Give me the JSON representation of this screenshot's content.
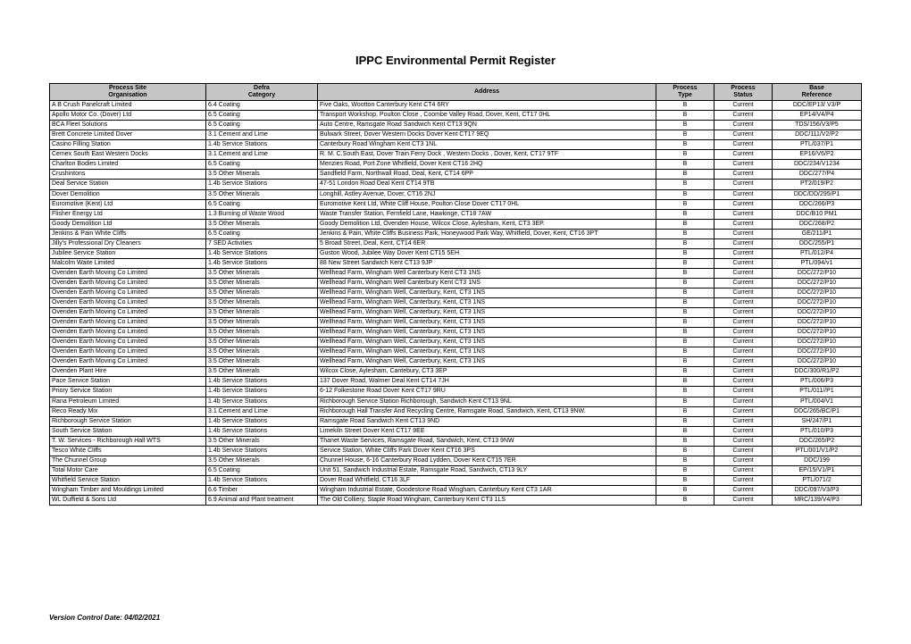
{
  "title": "IPPC Environmental Permit Register",
  "version_label": "Version Control Date: 04/02/2021",
  "columns": [
    {
      "key": "org",
      "label_line1": "Process Site",
      "label_line2": "Organisation",
      "class": "c-proc-site"
    },
    {
      "key": "category",
      "label_line1": "Defra",
      "label_line2": "Category",
      "class": "c-category"
    },
    {
      "key": "address",
      "label_line1": "Address",
      "label_line2": "",
      "class": "c-address"
    },
    {
      "key": "ptype",
      "label_line1": "Process",
      "label_line2": "Type",
      "class": "c-ptype"
    },
    {
      "key": "status",
      "label_line1": "Process",
      "label_line2": "Status",
      "class": "c-status"
    },
    {
      "key": "ref",
      "label_line1": "Base",
      "label_line2": "Reference",
      "class": "c-ref"
    }
  ],
  "rows": [
    {
      "org": "A B Crush Panelcraft Limited",
      "category": "6.4 Coating",
      "address": "Five Oaks, Wootton Canterbury Kent CT4 6RY",
      "ptype": "B",
      "status": "Current",
      "ref": "DDC/EP13/ V3/P"
    },
    {
      "org": "Apollo Motor Co. (Dover) Ltd",
      "category": "6.5 Coating",
      "address": "Transport Workshop, Poulton Close , Coombe Valley Road, Dover, Kent, CT17 0HL",
      "ptype": "B",
      "status": "Current",
      "ref": "EP14/V4/P4"
    },
    {
      "org": "BCA Fleet Solutions",
      "category": "6.5 Coating",
      "address": "Auto Centre, Ramsgate Road Sandwich Kent CT13 9QN",
      "ptype": "B",
      "status": "Current",
      "ref": "TDS/156/V3/P5"
    },
    {
      "org": "Brett Concrete Limited Dover",
      "category": "3.1 Cement and Lime",
      "address": "Bulwark Street, Dover Western Docks Dover Kent CT17 9EQ",
      "ptype": "B",
      "status": "Current",
      "ref": "DDC/111/V2/P2"
    },
    {
      "org": "Casino Filling Station",
      "category": "1.4b Service Stations",
      "address": "Canterbury Road Wingham Kent CT3 1NL",
      "ptype": "B",
      "status": "Current",
      "ref": "PTL/037/P1"
    },
    {
      "org": "Cemex South East Western Docks",
      "category": "3.1 Cement and Lime",
      "address": "R. M. C.South East, Dover Train Ferry Dock , Western Docks , Dover, Kent, CT17 9TF",
      "ptype": "B",
      "status": "Current",
      "ref": "EP16/V6/P2"
    },
    {
      "org": "Charlton Bodies Limited",
      "category": "6.5 Coating",
      "address": "Menzies Road, Port Zone Whitfield, Dover Kent CT16 2HQ",
      "ptype": "B",
      "status": "Current",
      "ref": "DDC/234/V1234"
    },
    {
      "org": "Crushintons",
      "category": "3.5 Other Minerals",
      "address": "Sandfield Farm, Northwall Road, Deal, Kent, CT14 6PP",
      "ptype": "B",
      "status": "Current",
      "ref": "DDC/277/P4"
    },
    {
      "org": "Deal Service Station",
      "category": "1.4b Service Stations",
      "address": "47-51 London Road Deal Kent CT14 9TB",
      "ptype": "B",
      "status": "Current",
      "ref": "PT2/019/P2"
    },
    {
      "org": "Dover Demolition",
      "category": "3.5 Other Minerals",
      "address": "Longhill, Astley Avenue, Dover, CT16 2NJ",
      "ptype": "B",
      "status": "Current",
      "ref": "DDC/DD/295/P1"
    },
    {
      "org": "Euromotive (Kent) Ltd",
      "category": "6.5 Coating",
      "address": "Euromotive Kent Ltd, White Cliff House, Poulton Close Dover CT17 0HL",
      "ptype": "B",
      "status": "Current",
      "ref": "DDC/266/P3"
    },
    {
      "org": "Flisher Energy Ltd",
      "category": "1.3 Burning of Waste Wood",
      "address": "Waste Transfer Station, Fernfield Lane, Hawkinge, CT18 7AW",
      "ptype": "B",
      "status": "Current",
      "ref": "DDC/B10 PM1"
    },
    {
      "org": "Goody Demolition Ltd",
      "category": "3.5 Other Minerals",
      "address": "Goody Demolition Ltd, Ovenden House, Wilcox Close, Aylesham, Kent, CT3 3EP.",
      "ptype": "B",
      "status": "Current",
      "ref": "DDC/268/P2"
    },
    {
      "org": "Jenkins & Pain White Cliffs",
      "category": "6.5 Coating",
      "address": "Jenkins & Pain, White Cliffs Business Park, Honeywood Park Way, Whitfield, Dover, Kent, CT16 3PT",
      "ptype": "B",
      "status": "Current",
      "ref": "GE/211/P1"
    },
    {
      "org": "Jilly's Professional Dry Cleaners",
      "category": "7 SED Activities",
      "address": "5 Broad Street, Deal, Kent, CT14 6ER",
      "ptype": "B",
      "status": "Current",
      "ref": "DDC/255/P1"
    },
    {
      "org": "Jubilee Service Station",
      "category": "1.4b Service Stations",
      "address": "Guston Wood, Jubilee Way Dover Kent CT15 5EH",
      "ptype": "B",
      "status": "Current",
      "ref": "PTL/012/P4"
    },
    {
      "org": "Malcolm Waite Limited",
      "category": "1.4b Service Stations",
      "address": "88 New Street Sandwich Kent CT13 9JP",
      "ptype": "B",
      "status": "Current",
      "ref": "PTL/094/v1"
    },
    {
      "org": "Ovenden Earth Moving Co Limited",
      "category": "3.5 Other Minerals",
      "address": "Wellhead Farm, Wingham Well Canterbury Kent CT3 1NS",
      "ptype": "B",
      "status": "Current",
      "ref": "DDC/272/P10"
    },
    {
      "org": "Ovenden Earth Moving Co Limited",
      "category": "3.5 Other Minerals",
      "address": "Wellhead Farm, Wingham Well Canterbury Kent CT3 1NS",
      "ptype": "B",
      "status": "Current",
      "ref": "DDC/272/P10"
    },
    {
      "org": "Ovenden Earth Moving Co Limited",
      "category": "3.5 Other Minerals",
      "address": "Wellhead Farm, Wingham Well, Canterbury, Kent, CT3 1NS",
      "ptype": "B",
      "status": "Current",
      "ref": "DDC/272/P10"
    },
    {
      "org": "Ovenden Earth Moving Co Limited",
      "category": "3.5 Other Minerals",
      "address": "Wellhead Farm, Wingham Well, Canterbury, Kent, CT3 1NS",
      "ptype": "B",
      "status": "Current",
      "ref": "DDC/272/P10"
    },
    {
      "org": "Ovenden Earth Moving Co Limited",
      "category": "3.5 Other Minerals",
      "address": "Wellhead Farm, Wingham Well, Canterbury, Kent, CT3 1NS",
      "ptype": "B",
      "status": "Current",
      "ref": "DDC/272/P10"
    },
    {
      "org": "Ovenden Earth Moving Co Limited",
      "category": "3.5 Other Minerals",
      "address": "Wellhead Farm, Wingham Well, Canterbury, Kent, CT3 1NS",
      "ptype": "B",
      "status": "Current",
      "ref": "DDC/272/P10"
    },
    {
      "org": "Ovenden Earth Moving Co Limited",
      "category": "3.5 Other Minerals",
      "address": "Wellhead Farm, Wingham Well, Canterbury, Kent, CT3 1NS",
      "ptype": "B",
      "status": "Current",
      "ref": "DDC/272/P10"
    },
    {
      "org": "Ovenden Earth Moving Co Limited",
      "category": "3.5 Other Minerals",
      "address": "Wellhead Farm, Wingham Well, Canterbury, Kent, CT3 1NS",
      "ptype": "B",
      "status": "Current",
      "ref": "DDC/272/P10"
    },
    {
      "org": "Ovenden Earth Moving Co Limited",
      "category": "3.5 Other Minerals",
      "address": "Wellhead Farm, Wingham Well, Canterbury, Kent, CT3 1NS",
      "ptype": "B",
      "status": "Current",
      "ref": "DDC/272/P10"
    },
    {
      "org": "Ovenden Earth Moving Co Limited",
      "category": "3.5 Other Minerals",
      "address": "Wellhead Farm, Wingham Well, Canterbury, Kent, CT3 1NS",
      "ptype": "B",
      "status": "Current",
      "ref": "DDC/272/P10"
    },
    {
      "org": "Ovenden Plant Hire",
      "category": "3.5 Other Minerals",
      "address": "Wilcox Close, Aylesham, Cantebury, CT3 3EP",
      "ptype": "B",
      "status": "Current",
      "ref": "DDC/300/R1/P2"
    },
    {
      "org": "Pace Service Station",
      "category": "1.4b Service Stations",
      "address": "137 Dover Road, Walmer Deal Kent CT14 7JH",
      "ptype": "B",
      "status": "Current",
      "ref": "PTL/006/P3"
    },
    {
      "org": "Priory Service Station",
      "category": "1.4b Service Stations",
      "address": "6-12 Folkestone Road Dover Kent CT17 9RU",
      "ptype": "B",
      "status": "Current",
      "ref": "PTL/011//P1"
    },
    {
      "org": "Rana Petroleum Limited",
      "category": "1.4b Service Stations",
      "address": "Richborough Service Station Richborough, Sandwich Kent CT13 9NL",
      "ptype": "B",
      "status": "Current",
      "ref": "PTL/004/V1"
    },
    {
      "org": "Reco Ready Mix",
      "category": "3.1 Cement and Lime",
      "address": "Richborough Hall Transfer And Recycling Centre, Ramsgate Road, Sandwich, Kent, CT13 9NW.",
      "ptype": "B",
      "status": "Current",
      "ref": "DDC/265/BC/P1"
    },
    {
      "org": "Richborough Service Station",
      "category": "1.4b Service Stations",
      "address": "Ramsgate Road Sandwich Kent CT13 9ND",
      "ptype": "B",
      "status": "Current",
      "ref": "SH/247/P1"
    },
    {
      "org": "South Service Station",
      "category": "1.4b Service Stations",
      "address": "Limekiln Street Dover Kent CT17 9EE",
      "ptype": "B",
      "status": "Current",
      "ref": "PTL/010/P3"
    },
    {
      "org": "T. W. Services - Richborough Hall WTS",
      "category": "3.5 Other Minerals",
      "address": "Thanet Waste Services, Ramsgate Road, Sandwich, Kent, CT13 9NW",
      "ptype": "B",
      "status": "Current",
      "ref": "DDC/265/P2"
    },
    {
      "org": "Tesco White Cliffs",
      "category": "1.4b Service Stations",
      "address": "Service Station, White Cliffs Park Dover Kent CT16 3PS",
      "ptype": "B",
      "status": "Current",
      "ref": "PTL/001/V1/P2"
    },
    {
      "org": "The Chunnel Group",
      "category": "3.5 Other Minerals",
      "address": "Chunnel House, 6-16 Canterbury Road Lydden, Dover Kent CT15 7ER",
      "ptype": "B",
      "status": "Current",
      "ref": "DDC/199"
    },
    {
      "org": "Total Motor Care",
      "category": "6.5 Coating",
      "address": "Unit 51, Sandwich Industrial Estate, Ramsgate Road, Sandwich, CT13 9LY",
      "ptype": "B",
      "status": "Current",
      "ref": "EP/15/V1/P1"
    },
    {
      "org": "Whitfield Service Station",
      "category": "1.4b Service Stations",
      "address": "Dover Road Whitfield, CT16 3LF",
      "ptype": "B",
      "status": "Current",
      "ref": "PTL/071/2"
    },
    {
      "org": "Wingham Timber and Mouldings Limited",
      "category": "6.6 Timber",
      "address": "Wingham Industrial Estate, Goodestone Road Wingham, Canterbury Kent CT3 1AR",
      "ptype": "B",
      "status": "Current",
      "ref": "DDC/097/V3/P3"
    },
    {
      "org": "WL Duffield & Sons Ltd",
      "category": "6.9 Animal and Plant treatment",
      "address": "The Old Colliery, Staple Road Wingham, Canterbury Kent CT3 1LS",
      "ptype": "B",
      "status": "Current",
      "ref": "MRC/139/V4/P3"
    }
  ]
}
